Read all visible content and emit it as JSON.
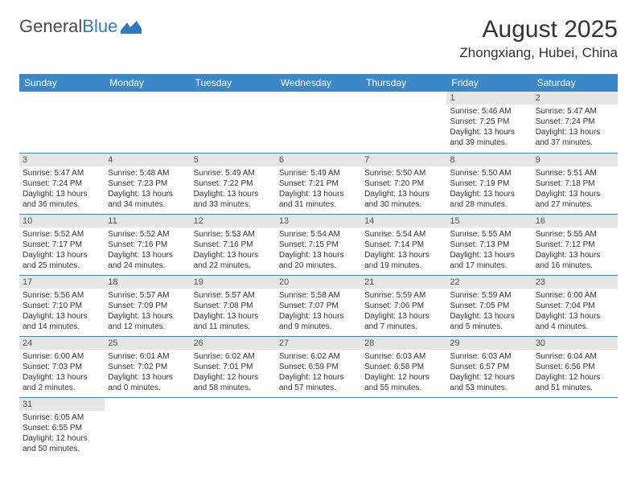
{
  "logo": {
    "text1": "General",
    "text2": "Blue"
  },
  "header": {
    "month_title": "August 2025",
    "location": "Zhongxiang, Hubei, China"
  },
  "colors": {
    "header_bg": "#3b87c8",
    "header_text": "#ffffff",
    "daynum_bg": "#e6e6e6",
    "row_border": "#3b87c8",
    "body_text": "#333333",
    "logo_gray": "#4a4a4a",
    "logo_blue": "#2f7bbf"
  },
  "daynames": [
    "Sunday",
    "Monday",
    "Tuesday",
    "Wednesday",
    "Thursday",
    "Friday",
    "Saturday"
  ],
  "weeks": [
    [
      null,
      null,
      null,
      null,
      null,
      {
        "n": "1",
        "sr": "Sunrise: 5:46 AM",
        "ss": "Sunset: 7:25 PM",
        "dl": "Daylight: 13 hours and 39 minutes."
      },
      {
        "n": "2",
        "sr": "Sunrise: 5:47 AM",
        "ss": "Sunset: 7:24 PM",
        "dl": "Daylight: 13 hours and 37 minutes."
      }
    ],
    [
      {
        "n": "3",
        "sr": "Sunrise: 5:47 AM",
        "ss": "Sunset: 7:24 PM",
        "dl": "Daylight: 13 hours and 36 minutes."
      },
      {
        "n": "4",
        "sr": "Sunrise: 5:48 AM",
        "ss": "Sunset: 7:23 PM",
        "dl": "Daylight: 13 hours and 34 minutes."
      },
      {
        "n": "5",
        "sr": "Sunrise: 5:49 AM",
        "ss": "Sunset: 7:22 PM",
        "dl": "Daylight: 13 hours and 33 minutes."
      },
      {
        "n": "6",
        "sr": "Sunrise: 5:49 AM",
        "ss": "Sunset: 7:21 PM",
        "dl": "Daylight: 13 hours and 31 minutes."
      },
      {
        "n": "7",
        "sr": "Sunrise: 5:50 AM",
        "ss": "Sunset: 7:20 PM",
        "dl": "Daylight: 13 hours and 30 minutes."
      },
      {
        "n": "8",
        "sr": "Sunrise: 5:50 AM",
        "ss": "Sunset: 7:19 PM",
        "dl": "Daylight: 13 hours and 28 minutes."
      },
      {
        "n": "9",
        "sr": "Sunrise: 5:51 AM",
        "ss": "Sunset: 7:18 PM",
        "dl": "Daylight: 13 hours and 27 minutes."
      }
    ],
    [
      {
        "n": "10",
        "sr": "Sunrise: 5:52 AM",
        "ss": "Sunset: 7:17 PM",
        "dl": "Daylight: 13 hours and 25 minutes."
      },
      {
        "n": "11",
        "sr": "Sunrise: 5:52 AM",
        "ss": "Sunset: 7:16 PM",
        "dl": "Daylight: 13 hours and 24 minutes."
      },
      {
        "n": "12",
        "sr": "Sunrise: 5:53 AM",
        "ss": "Sunset: 7:16 PM",
        "dl": "Daylight: 13 hours and 22 minutes."
      },
      {
        "n": "13",
        "sr": "Sunrise: 5:54 AM",
        "ss": "Sunset: 7:15 PM",
        "dl": "Daylight: 13 hours and 20 minutes."
      },
      {
        "n": "14",
        "sr": "Sunrise: 5:54 AM",
        "ss": "Sunset: 7:14 PM",
        "dl": "Daylight: 13 hours and 19 minutes."
      },
      {
        "n": "15",
        "sr": "Sunrise: 5:55 AM",
        "ss": "Sunset: 7:13 PM",
        "dl": "Daylight: 13 hours and 17 minutes."
      },
      {
        "n": "16",
        "sr": "Sunrise: 5:55 AM",
        "ss": "Sunset: 7:12 PM",
        "dl": "Daylight: 13 hours and 16 minutes."
      }
    ],
    [
      {
        "n": "17",
        "sr": "Sunrise: 5:56 AM",
        "ss": "Sunset: 7:10 PM",
        "dl": "Daylight: 13 hours and 14 minutes."
      },
      {
        "n": "18",
        "sr": "Sunrise: 5:57 AM",
        "ss": "Sunset: 7:09 PM",
        "dl": "Daylight: 13 hours and 12 minutes."
      },
      {
        "n": "19",
        "sr": "Sunrise: 5:57 AM",
        "ss": "Sunset: 7:08 PM",
        "dl": "Daylight: 13 hours and 11 minutes."
      },
      {
        "n": "20",
        "sr": "Sunrise: 5:58 AM",
        "ss": "Sunset: 7:07 PM",
        "dl": "Daylight: 13 hours and 9 minutes."
      },
      {
        "n": "21",
        "sr": "Sunrise: 5:59 AM",
        "ss": "Sunset: 7:06 PM",
        "dl": "Daylight: 13 hours and 7 minutes."
      },
      {
        "n": "22",
        "sr": "Sunrise: 5:59 AM",
        "ss": "Sunset: 7:05 PM",
        "dl": "Daylight: 13 hours and 5 minutes."
      },
      {
        "n": "23",
        "sr": "Sunrise: 6:00 AM",
        "ss": "Sunset: 7:04 PM",
        "dl": "Daylight: 13 hours and 4 minutes."
      }
    ],
    [
      {
        "n": "24",
        "sr": "Sunrise: 6:00 AM",
        "ss": "Sunset: 7:03 PM",
        "dl": "Daylight: 13 hours and 2 minutes."
      },
      {
        "n": "25",
        "sr": "Sunrise: 6:01 AM",
        "ss": "Sunset: 7:02 PM",
        "dl": "Daylight: 13 hours and 0 minutes."
      },
      {
        "n": "26",
        "sr": "Sunrise: 6:02 AM",
        "ss": "Sunset: 7:01 PM",
        "dl": "Daylight: 12 hours and 58 minutes."
      },
      {
        "n": "27",
        "sr": "Sunrise: 6:02 AM",
        "ss": "Sunset: 6:59 PM",
        "dl": "Daylight: 12 hours and 57 minutes."
      },
      {
        "n": "28",
        "sr": "Sunrise: 6:03 AM",
        "ss": "Sunset: 6:58 PM",
        "dl": "Daylight: 12 hours and 55 minutes."
      },
      {
        "n": "29",
        "sr": "Sunrise: 6:03 AM",
        "ss": "Sunset: 6:57 PM",
        "dl": "Daylight: 12 hours and 53 minutes."
      },
      {
        "n": "30",
        "sr": "Sunrise: 6:04 AM",
        "ss": "Sunset: 6:56 PM",
        "dl": "Daylight: 12 hours and 51 minutes."
      }
    ],
    [
      {
        "n": "31",
        "sr": "Sunrise: 6:05 AM",
        "ss": "Sunset: 6:55 PM",
        "dl": "Daylight: 12 hours and 50 minutes."
      },
      null,
      null,
      null,
      null,
      null,
      null
    ]
  ]
}
